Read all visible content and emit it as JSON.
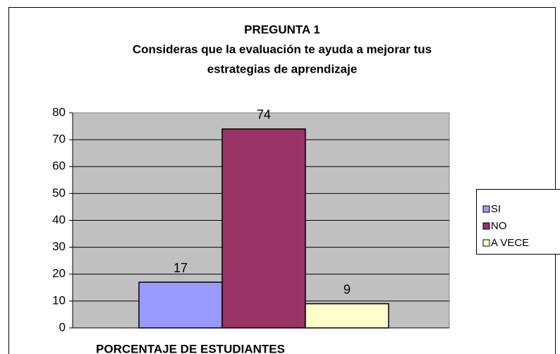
{
  "chart_data": {
    "type": "bar",
    "title": [
      "PREGUNTA 1",
      "Consideras que la evaluación te ayuda  a mejorar tus",
      "estrategias de aprendizaje"
    ],
    "x_label": "PORCENTAJE DE ESTUDIANTES",
    "categories": [
      "SI",
      "NO",
      "A VECE"
    ],
    "values": [
      17,
      74,
      9
    ],
    "colors": [
      "#9999ff",
      "#993366",
      "#ffffcc"
    ],
    "ylim": [
      0,
      80
    ],
    "yticks": [
      0,
      10,
      20,
      30,
      40,
      50,
      60,
      70,
      80
    ],
    "grid": true,
    "legend": "right"
  }
}
